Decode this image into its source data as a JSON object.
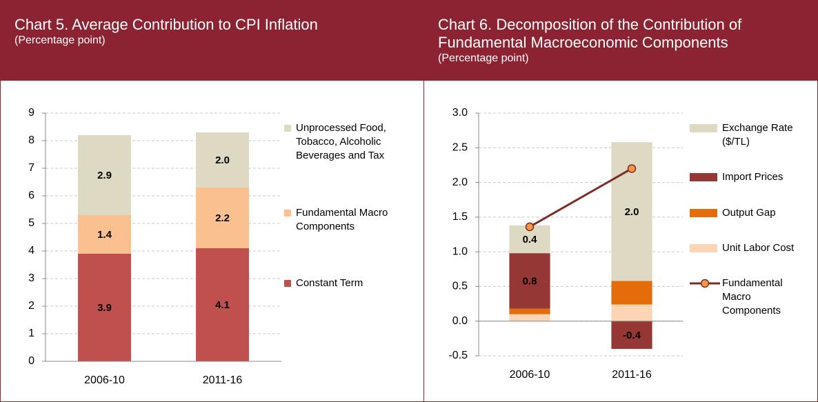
{
  "chart_data": [
    {
      "type": "bar",
      "stacked": true,
      "title": "Chart 5. Average Contribution to CPI Inflation",
      "subtitle": "(Percentage point)",
      "categories": [
        "2006-10",
        "2011-16"
      ],
      "series": [
        {
          "name": "Constant Term",
          "color": "#C0504D",
          "values": [
            3.9,
            4.1
          ],
          "data_labels": true
        },
        {
          "name": "Fundamental Macro Components",
          "color": "#FAC090",
          "values": [
            1.4,
            2.2
          ],
          "data_labels": true
        },
        {
          "name": "Unprocessed Food, Tobacco, Alcoholic Beverages and Tax",
          "color": "#DDD9C3",
          "values": [
            2.9,
            2.0
          ],
          "value_labels": [
            "2.9",
            "2.0"
          ],
          "data_labels": true
        }
      ],
      "ylim": [
        0,
        9
      ],
      "yticks": [
        0,
        1,
        2,
        3,
        4,
        5,
        6,
        7,
        8,
        9
      ],
      "grid": true,
      "legend": "right"
    },
    {
      "type": "bar",
      "stacked": true,
      "title": "Chart 6. Decomposition of the Contribution of Fundamental Macroeconomic Components",
      "subtitle": "(Percentage point)",
      "categories": [
        "2006-10",
        "2011-16"
      ],
      "series": [
        {
          "name": "Unit Labor Cost",
          "color": "#FCD5B5",
          "values": [
            0.1,
            0.24
          ]
        },
        {
          "name": "Output Gap",
          "color": "#E46C0A",
          "values": [
            0.08,
            0.34
          ]
        },
        {
          "name": "Import Prices",
          "color": "#953735",
          "values": [
            0.8,
            -0.4
          ],
          "data_labels": true
        },
        {
          "name": "Exchange Rate ($/TL)",
          "color": "#DDD9C3",
          "values": [
            0.4,
            2.0
          ],
          "value_labels": [
            "0.4",
            "2.0"
          ],
          "data_labels": true
        },
        {
          "name": "Fundamental Macro Components",
          "type": "line",
          "color": "#7B2C24",
          "marker_color": "#F79646",
          "values": [
            1.36,
            2.2
          ]
        }
      ],
      "ylim": [
        -0.5,
        3.0
      ],
      "yticks": [
        -0.5,
        {
          "value": 0,
          "label": "0.0"
        },
        0.5,
        {
          "value": 1,
          "label": "1.0"
        },
        1.5,
        {
          "value": 2,
          "label": "2.0"
        },
        2.5,
        {
          "value": 3,
          "label": "3.0"
        }
      ],
      "grid": true,
      "legend": "right"
    }
  ]
}
